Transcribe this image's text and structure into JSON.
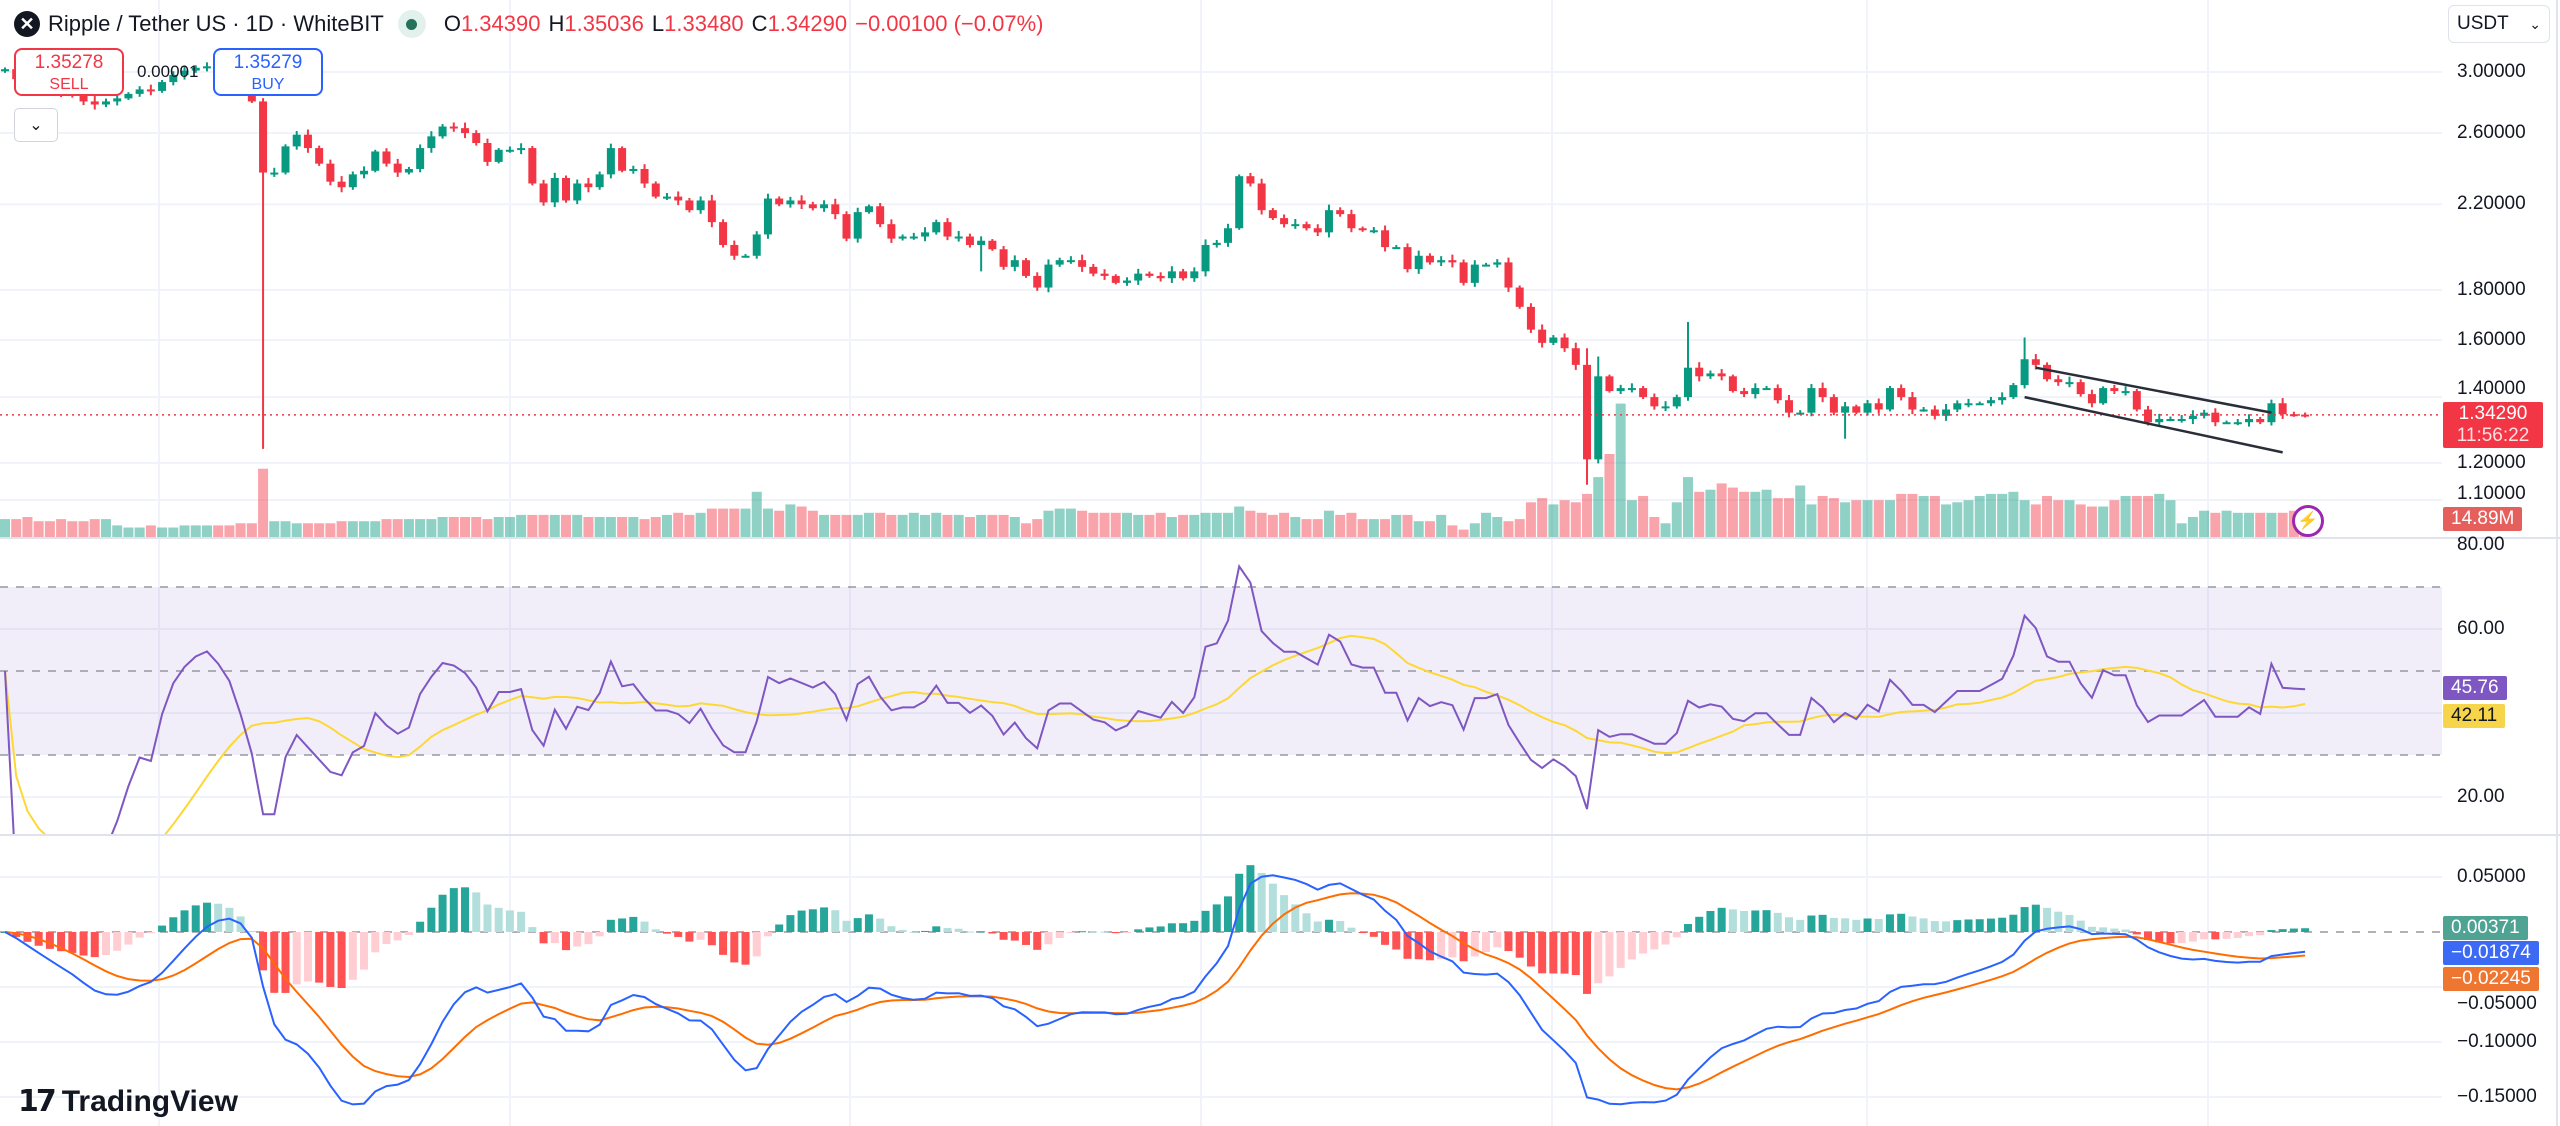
{
  "header": {
    "logo_icon": "ripple-x-icon",
    "title": "Ripple / Tether US · 1D · WhiteBIT",
    "market_status": "market-open-dot",
    "o_label": "O",
    "o": "1.34390",
    "h_label": "H",
    "h": "1.35036",
    "l_label": "L",
    "l": "1.33480",
    "c_label": "C",
    "c": "1.34290",
    "change": "−0.00100 (−0.07%)"
  },
  "trade": {
    "sell_price": "1.35278",
    "sell_label": "SELL",
    "spread": "0.00001",
    "buy_price": "1.35279",
    "buy_label": "BUY"
  },
  "currency_select": {
    "value": "USDT"
  },
  "price_axis": {
    "ticks": [
      {
        "label": "3.00000",
        "v": 3.0
      },
      {
        "label": "2.60000",
        "v": 2.6
      },
      {
        "label": "2.20000",
        "v": 2.2
      },
      {
        "label": "1.80000",
        "v": 1.8
      },
      {
        "label": "1.60000",
        "v": 1.6
      },
      {
        "label": "1.40000",
        "v": 1.4
      },
      {
        "label": "1.20000",
        "v": 1.2
      },
      {
        "label": "1.10000",
        "v": 1.1
      }
    ],
    "last_price": "1.34290",
    "countdown": "11:56:22",
    "volume_label": "14.89M"
  },
  "rsi_axis": {
    "ticks": [
      {
        "label": "80.00",
        "v": 80
      },
      {
        "label": "60.00",
        "v": 60
      },
      {
        "label": "20.00",
        "v": 20
      }
    ],
    "rsi_value": "45.76",
    "rsi_ma_value": "42.11"
  },
  "macd_axis": {
    "ticks": [
      {
        "label": "0.05000",
        "v": 0.05
      },
      {
        "label": "−0.05000",
        "v": -0.05
      },
      {
        "label": "−0.10000",
        "v": -0.1
      },
      {
        "label": "−0.15000",
        "v": -0.15
      }
    ],
    "hist_value": "0.00371",
    "macd_value": "−0.01874",
    "signal_value": "−0.02245"
  },
  "colors": {
    "up": "#089981",
    "down": "#f23645",
    "rsi": "#7e57c2",
    "rsi_ma": "#fdd835",
    "macd": "#2962ff",
    "signal": "#ff6d00",
    "hist_up_strong": "#26a69a",
    "hist_up_weak": "#b2dfdb",
    "hist_down_strong": "#ff5252",
    "hist_down_weak": "#ffcdd2"
  },
  "branding": {
    "logo_text": "TradingView"
  },
  "chart_data": {
    "type": "candlestick",
    "interval": "1D",
    "y_scale": "log",
    "ylim": [
      1.1,
      3.0
    ],
    "closes": [
      3.02,
      2.95,
      2.92,
      2.9,
      2.88,
      2.86,
      2.84,
      2.8,
      2.78,
      2.8,
      2.82,
      2.85,
      2.88,
      2.87,
      2.93,
      2.98,
      3.01,
      3.03,
      3.04,
      3.02,
      2.99,
      2.92,
      2.8,
      2.37,
      2.37,
      2.52,
      2.59,
      2.51,
      2.42,
      2.32,
      2.29,
      2.36,
      2.38,
      2.49,
      2.42,
      2.37,
      2.39,
      2.51,
      2.58,
      2.64,
      2.63,
      2.6,
      2.54,
      2.43,
      2.5,
      2.5,
      2.51,
      2.31,
      2.21,
      2.34,
      2.22,
      2.31,
      2.29,
      2.36,
      2.51,
      2.38,
      2.39,
      2.31,
      2.24,
      2.24,
      2.22,
      2.17,
      2.22,
      2.11,
      2.0,
      1.95,
      1.95,
      2.05,
      2.23,
      2.2,
      2.22,
      2.2,
      2.18,
      2.2,
      2.15,
      2.03,
      2.16,
      2.19,
      2.1,
      2.03,
      2.04,
      2.04,
      2.06,
      2.11,
      2.04,
      2.04,
      2.0,
      2.02,
      1.98,
      1.9,
      1.93,
      1.86,
      1.81,
      1.91,
      1.93,
      1.93,
      1.9,
      1.87,
      1.86,
      1.83,
      1.84,
      1.87,
      1.86,
      1.85,
      1.88,
      1.85,
      1.88,
      2.0,
      2.01,
      2.08,
      2.35,
      2.31,
      2.17,
      2.13,
      2.1,
      2.1,
      2.08,
      2.06,
      2.17,
      2.15,
      2.08,
      2.07,
      2.07,
      1.99,
      1.99,
      1.89,
      1.95,
      1.92,
      1.93,
      1.92,
      1.83,
      1.91,
      1.91,
      1.92,
      1.81,
      1.73,
      1.64,
      1.59,
      1.61,
      1.57,
      1.51,
      1.21,
      1.47,
      1.42,
      1.43,
      1.43,
      1.4,
      1.37,
      1.37,
      1.4,
      1.5,
      1.47,
      1.48,
      1.47,
      1.42,
      1.41,
      1.43,
      1.43,
      1.39,
      1.35,
      1.35,
      1.43,
      1.4,
      1.35,
      1.37,
      1.35,
      1.38,
      1.36,
      1.43,
      1.4,
      1.36,
      1.36,
      1.34,
      1.36,
      1.38,
      1.38,
      1.38,
      1.39,
      1.4,
      1.44,
      1.53,
      1.51,
      1.46,
      1.45,
      1.45,
      1.41,
      1.38,
      1.43,
      1.42,
      1.42,
      1.36,
      1.32,
      1.33,
      1.33,
      1.33,
      1.34,
      1.35,
      1.32,
      1.32,
      1.32,
      1.33,
      1.32,
      1.38,
      1.345,
      1.3439,
      1.3429
    ],
    "last_candle": {
      "open": 1.3439,
      "high": 1.35036,
      "low": 1.3348,
      "close": 1.3429
    },
    "wick_extremes": [
      {
        "i": 23,
        "low": 1.24
      },
      {
        "i": 141,
        "low": 1.14,
        "high": 1.57
      },
      {
        "i": 142,
        "high": 1.54
      },
      {
        "i": 150,
        "high": 1.67
      },
      {
        "i": 164,
        "low": 1.27
      },
      {
        "i": 180,
        "high": 1.61
      },
      {
        "i": 87,
        "low": 1.88
      }
    ],
    "volume_millions": [
      9,
      9,
      10,
      8,
      8,
      9,
      8,
      8,
      9,
      9,
      6,
      5,
      5,
      6,
      5,
      5,
      6,
      6,
      6,
      6,
      6,
      7,
      7,
      33,
      8,
      8,
      7,
      7,
      7,
      7,
      8,
      8,
      8,
      8,
      9,
      9,
      9,
      9,
      9,
      10,
      10,
      10,
      10,
      9,
      10,
      10,
      11,
      11,
      11,
      11,
      11,
      11,
      10,
      10,
      10,
      10,
      10,
      9,
      10,
      11,
      12,
      11,
      12,
      14,
      14,
      14,
      14,
      22,
      14,
      13,
      16,
      15,
      13,
      11,
      11,
      11,
      11,
      12,
      12,
      11,
      11,
      12,
      11,
      12,
      11,
      11,
      10,
      11,
      11,
      11,
      10,
      7,
      9,
      13,
      14,
      14,
      13,
      12,
      12,
      12,
      12,
      11,
      11,
      12,
      10,
      11,
      11,
      12,
      12,
      12,
      15,
      13,
      12,
      11,
      12,
      10,
      9,
      9,
      13,
      11,
      12,
      9,
      9,
      9,
      11,
      11,
      8,
      8,
      11,
      6,
      4,
      7,
      12,
      10,
      8,
      9,
      17,
      19,
      16,
      18,
      17,
      21,
      29,
      40,
      64,
      18,
      20,
      10,
      7,
      17,
      29,
      22,
      23,
      26,
      24,
      22,
      22,
      23,
      19,
      19,
      25,
      16,
      20,
      19,
      17,
      18,
      18,
      18,
      18,
      21,
      21,
      20,
      20,
      16,
      17,
      18,
      20,
      21,
      21,
      22,
      18,
      16,
      20,
      18,
      18,
      16,
      15,
      15,
      18,
      20,
      20,
      20,
      21,
      18,
      7,
      10,
      13,
      12,
      13,
      12,
      12,
      12,
      12,
      12,
      13,
      14.89
    ],
    "channel": {
      "upper": [
        {
          "i": 181,
          "price": 1.5
        },
        {
          "i": 202,
          "price": 1.35
        }
      ],
      "lower": [
        {
          "i": 180,
          "price": 1.4
        },
        {
          "i": 203,
          "price": 1.23
        }
      ]
    },
    "indicators": {
      "rsi": {
        "period": 14,
        "ma_period": 14,
        "levels": [
          70,
          50,
          30
        ],
        "ylim": [
          10,
          90
        ]
      },
      "macd": {
        "fast": 12,
        "slow": 26,
        "signal": 9
      }
    }
  }
}
